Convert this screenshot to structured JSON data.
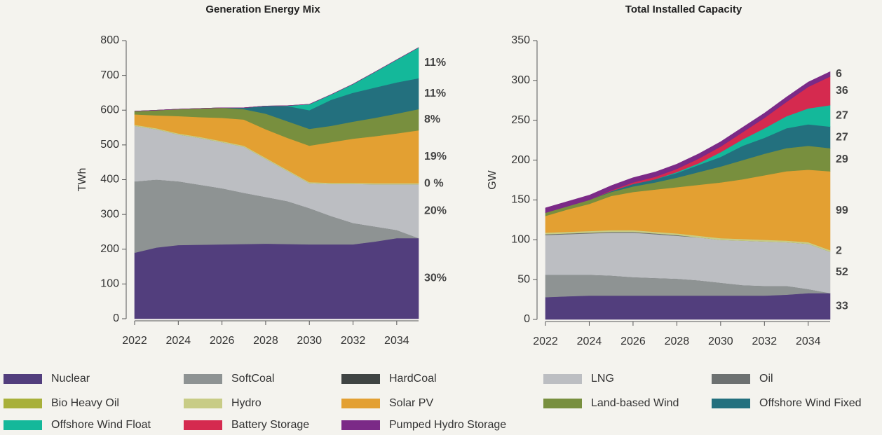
{
  "chart_data": [
    {
      "type": "area",
      "title": "Generation Energy Mix",
      "y_label": "TWh",
      "x": [
        2022,
        2023,
        2024,
        2025,
        2026,
        2027,
        2028,
        2029,
        2030,
        2031,
        2032,
        2033,
        2034,
        2035
      ],
      "xlim": [
        2022,
        2035
      ],
      "xticks": [
        2022,
        2024,
        2026,
        2028,
        2030,
        2032,
        2034
      ],
      "ylim": [
        0,
        800
      ],
      "yticks": [
        0,
        100,
        200,
        300,
        400,
        500,
        600,
        700,
        800
      ],
      "series": [
        {
          "name": "Nuclear",
          "color": "#523e7d",
          "values": [
            190,
            205,
            212,
            213,
            214,
            215,
            216,
            215,
            214,
            214,
            214,
            222,
            232,
            232
          ],
          "end_label": "30%"
        },
        {
          "name": "SoftCoal",
          "color": "#8e9393",
          "values": [
            205,
            195,
            183,
            172,
            161,
            147,
            134,
            123,
            104,
            81,
            61,
            43,
            23,
            0
          ]
        },
        {
          "name": "HardCoal",
          "color": "#3f4443",
          "values": [
            0,
            0,
            0,
            0,
            0,
            0,
            0,
            0,
            0,
            0,
            0,
            0,
            0,
            0
          ]
        },
        {
          "name": "LNG",
          "color": "#bcbec2",
          "values": [
            160,
            145,
            135,
            135,
            133,
            133,
            110,
            87,
            72,
            93,
            113,
            122,
            132,
            155
          ],
          "end_label": "20%"
        },
        {
          "name": "Oil",
          "color": "#6d7171",
          "values": [
            0,
            0,
            0,
            0,
            0,
            0,
            0,
            0,
            0,
            0,
            0,
            0,
            0,
            0
          ]
        },
        {
          "name": "Bio Heavy Oil",
          "color": "#a8b03a",
          "values": [
            0,
            0,
            0,
            0,
            0,
            0,
            0,
            0,
            0,
            0,
            0,
            0,
            0,
            0
          ]
        },
        {
          "name": "Hydro",
          "color": "#c8cc86",
          "values": [
            3,
            3,
            3,
            3,
            3,
            3,
            3,
            3,
            3,
            3,
            3,
            3,
            3,
            3
          ],
          "end_label": "0 %"
        },
        {
          "name": "Solar PV",
          "color": "#e3a032",
          "values": [
            30,
            37,
            50,
            57,
            67,
            75,
            82,
            92,
            105,
            117,
            127,
            135,
            143,
            152
          ],
          "end_label": "19%"
        },
        {
          "name": "Land-based Wind",
          "color": "#788f3e",
          "values": [
            9,
            15,
            20,
            25,
            29,
            30,
            45,
            48,
            48,
            47,
            49,
            53,
            57,
            61
          ],
          "end_label": "8%"
        },
        {
          "name": "Offshore Wind Fixed",
          "color": "#23707e",
          "values": [
            0,
            0,
            0,
            0,
            0,
            4,
            22,
            44,
            54,
            75,
            83,
            87,
            90,
            89
          ],
          "end_label": "11%"
        },
        {
          "name": "Offshore Wind Float",
          "color": "#14b89a",
          "values": [
            0,
            0,
            0,
            0,
            0,
            0,
            0,
            1,
            17,
            15,
            25,
            45,
            65,
            88
          ],
          "end_label": "11%"
        },
        {
          "name": "Battery Storage",
          "color": "#d52a4f",
          "values": [
            0,
            0,
            0,
            0,
            0,
            0,
            0,
            0,
            0,
            0,
            0,
            0,
            0,
            0
          ]
        },
        {
          "name": "Pumped Hydro Storage",
          "color": "#7b2a87",
          "values": [
            0,
            0,
            0,
            0,
            0,
            0,
            0,
            0,
            0,
            0,
            0,
            0,
            0,
            0
          ]
        }
      ]
    },
    {
      "type": "area",
      "title": "Total Installed Capacity",
      "y_label": "GW",
      "end_value_labels": true,
      "x": [
        2022,
        2023,
        2024,
        2025,
        2026,
        2027,
        2028,
        2029,
        2030,
        2031,
        2032,
        2033,
        2034,
        2035
      ],
      "xlim": [
        2022,
        2035
      ],
      "xticks": [
        2022,
        2024,
        2026,
        2028,
        2030,
        2032,
        2034
      ],
      "ylim": [
        0,
        350
      ],
      "yticks": [
        0,
        50,
        100,
        150,
        200,
        250,
        300,
        350
      ],
      "series": [
        {
          "name": "Nuclear",
          "color": "#523e7d",
          "values": [
            28,
            29,
            30,
            30,
            30,
            30,
            30,
            30,
            30,
            30,
            30,
            31,
            33,
            33
          ]
        },
        {
          "name": "SoftCoal",
          "color": "#8e9393",
          "values": [
            28,
            27,
            26,
            25,
            23,
            22,
            21,
            19,
            16,
            13,
            12,
            11,
            5,
            0
          ]
        },
        {
          "name": "HardCoal",
          "color": "#3f4443",
          "values": [
            0,
            0,
            0,
            0,
            0,
            0,
            0,
            0,
            0,
            0,
            0,
            0,
            0,
            0
          ]
        },
        {
          "name": "LNG",
          "color": "#bcbec2",
          "values": [
            50,
            51,
            52,
            54,
            56,
            55,
            54,
            54,
            54,
            56,
            56,
            55,
            57,
            52
          ]
        },
        {
          "name": "Oil",
          "color": "#6d7171",
          "values": [
            1,
            1,
            1,
            1,
            1,
            1,
            1,
            0,
            0,
            0,
            0,
            0,
            0,
            0
          ]
        },
        {
          "name": "Bio Heavy Oil",
          "color": "#a8b03a",
          "values": [
            0,
            0,
            0,
            0,
            0,
            0,
            0,
            0,
            0,
            0,
            0,
            0,
            0,
            0
          ]
        },
        {
          "name": "Hydro",
          "color": "#c8cc86",
          "values": [
            2,
            2,
            2,
            2,
            2,
            2,
            2,
            2,
            2,
            2,
            2,
            2,
            2,
            2
          ]
        },
        {
          "name": "Solar PV",
          "color": "#e3a032",
          "values": [
            21,
            28,
            34,
            43,
            48,
            53,
            58,
            64,
            70,
            75,
            81,
            87,
            91,
            99
          ]
        },
        {
          "name": "Land-based Wind",
          "color": "#788f3e",
          "values": [
            4,
            4,
            5,
            5,
            7,
            9,
            12,
            16,
            20,
            24,
            27,
            29,
            30,
            29
          ]
        },
        {
          "name": "Offshore Wind Fixed",
          "color": "#23707e",
          "values": [
            0,
            0,
            0,
            1,
            3,
            4,
            6,
            9,
            12,
            18,
            20,
            25,
            27,
            27
          ]
        },
        {
          "name": "Offshore Wind Float",
          "color": "#14b89a",
          "values": [
            0,
            0,
            0,
            0,
            0,
            0,
            1,
            2,
            6,
            8,
            12,
            15,
            20,
            27
          ]
        },
        {
          "name": "Battery Storage",
          "color": "#d52a4f",
          "values": [
            0,
            0,
            0,
            1,
            2,
            3,
            4,
            6,
            7,
            9,
            13,
            18,
            27,
            36
          ]
        },
        {
          "name": "Pumped Hydro Storage",
          "color": "#7b2a87",
          "values": [
            6,
            6,
            6,
            6,
            6,
            6,
            6,
            6,
            6,
            6,
            6,
            6,
            6,
            6
          ]
        }
      ]
    }
  ]
}
